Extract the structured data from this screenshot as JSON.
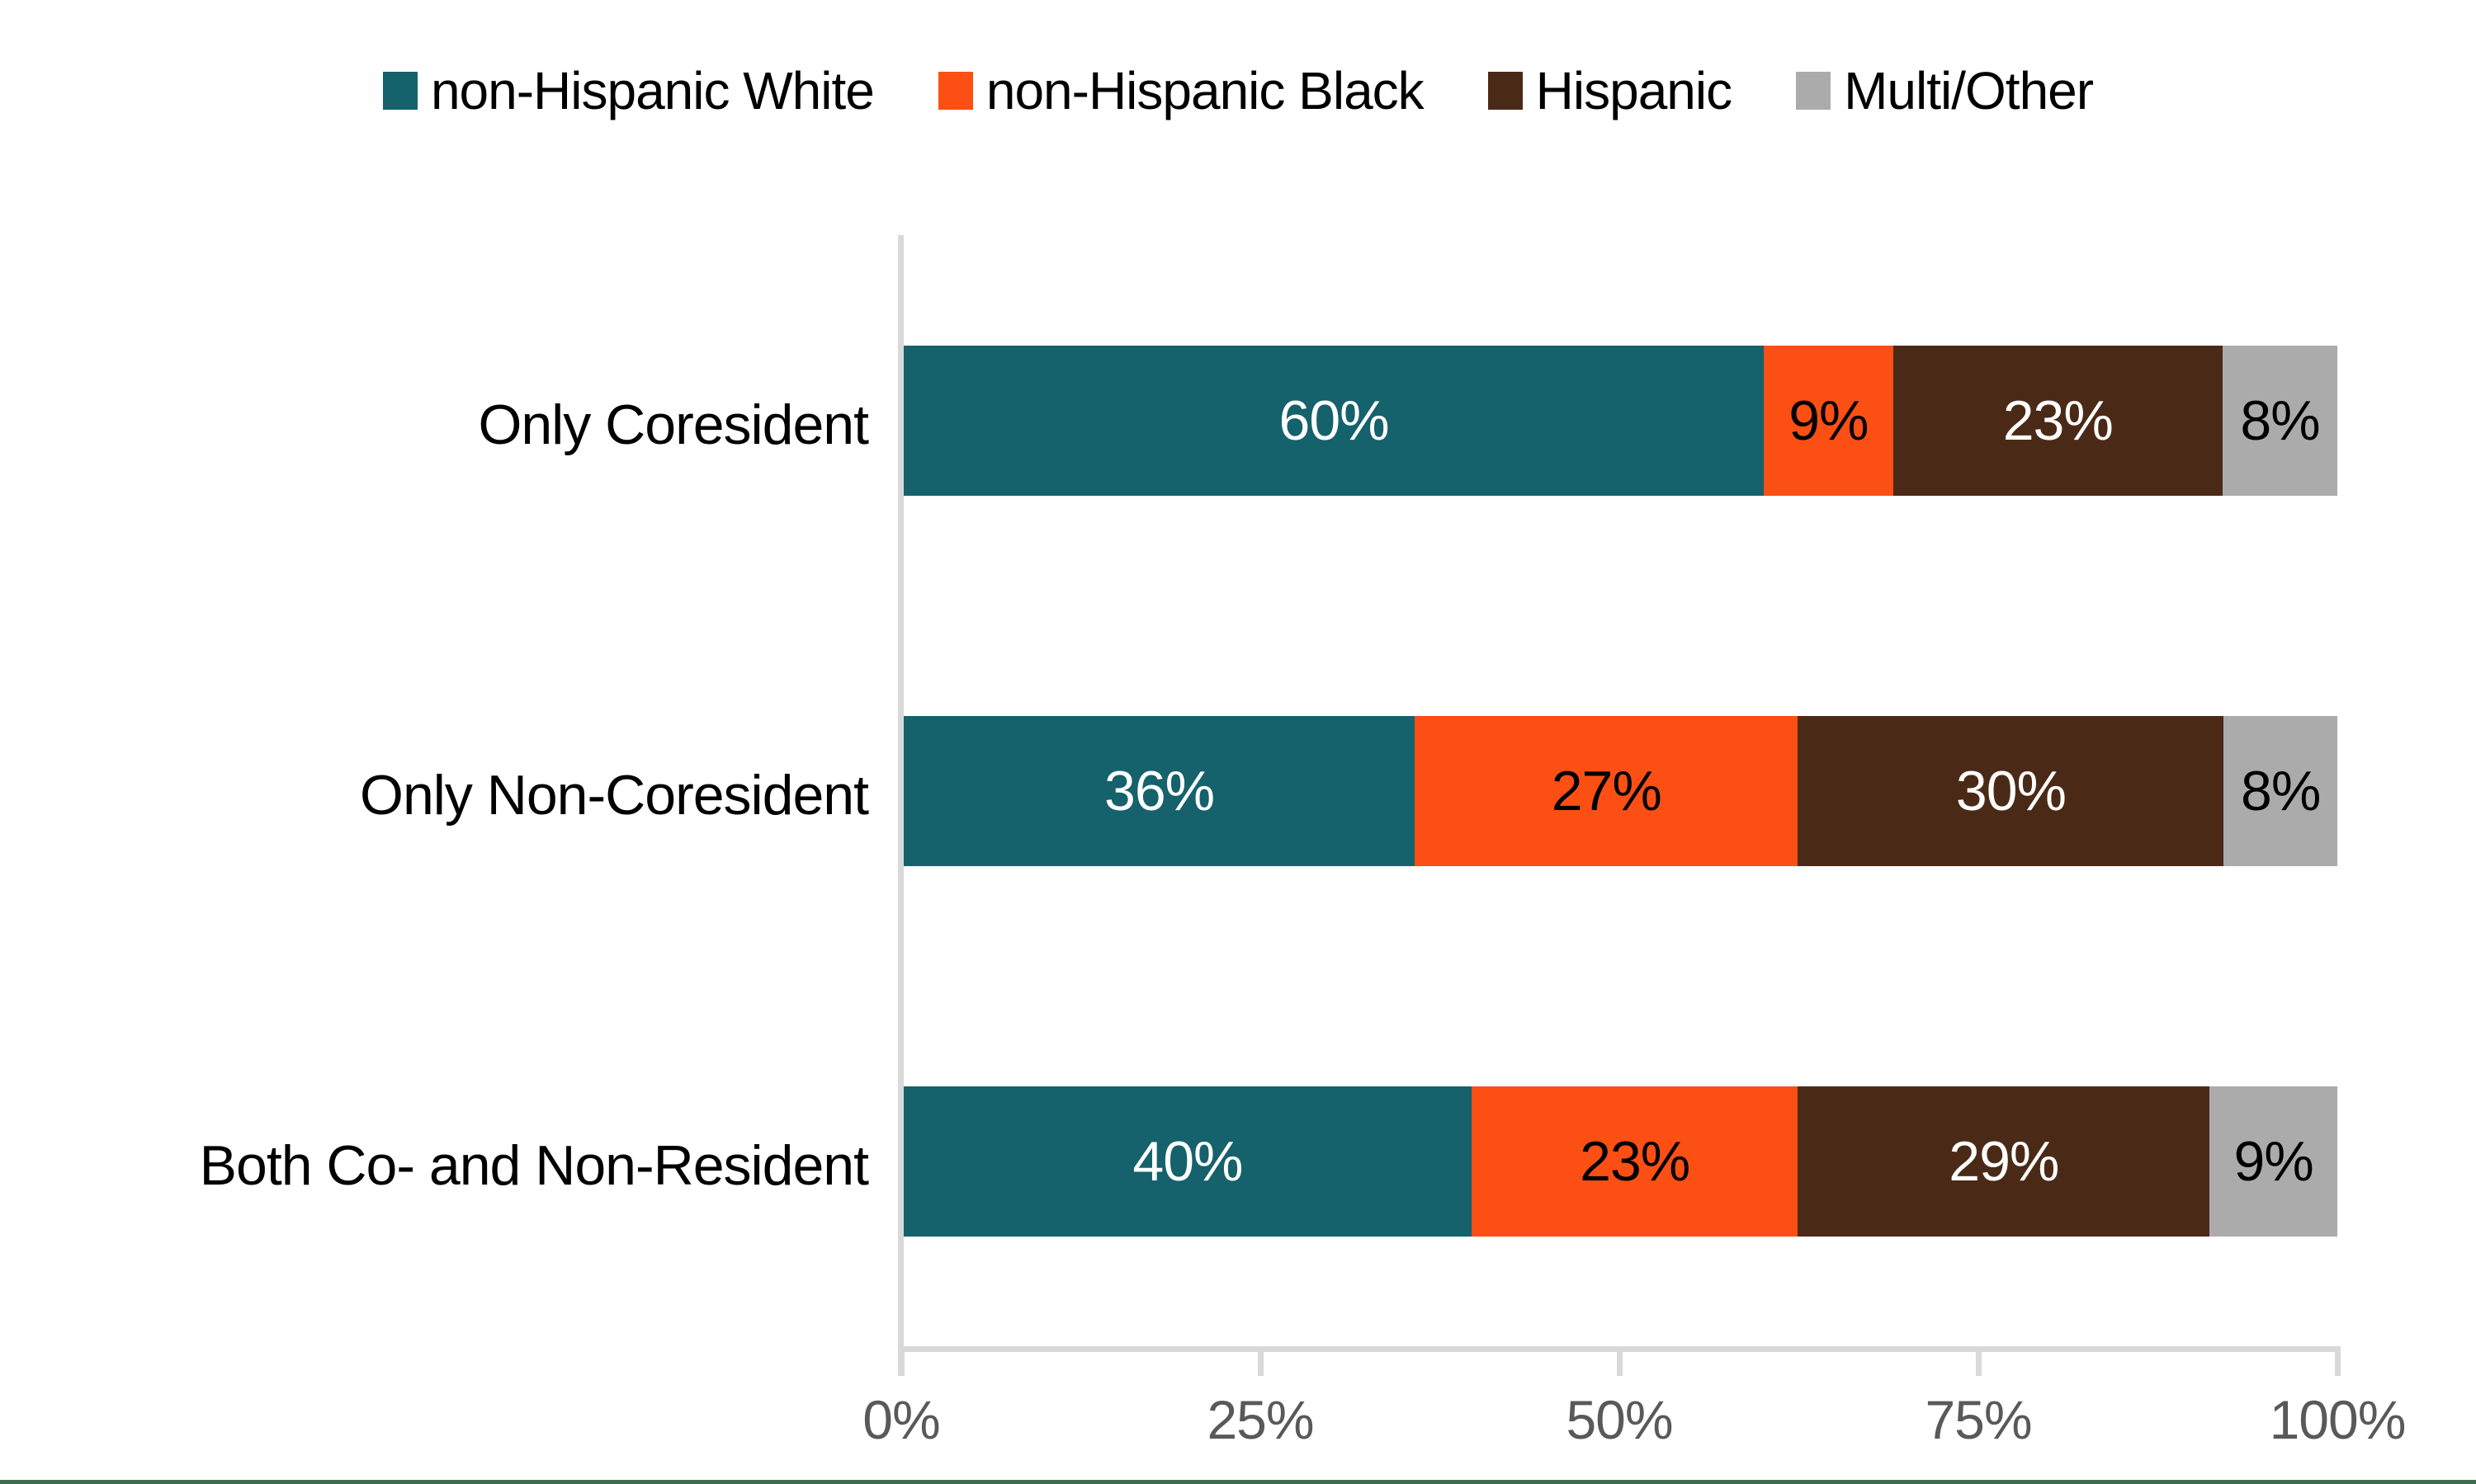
{
  "chart_data": {
    "type": "bar",
    "orientation": "horizontal",
    "stacked": true,
    "title": "",
    "xlabel": "",
    "ylabel": "",
    "categories": [
      "Only Coresident",
      "Only Non-Coresident",
      "Both Co- and Non-Resident"
    ],
    "series": [
      {
        "name": "non-Hispanic White",
        "color": "#15616C",
        "label_color": "#FFFFFF",
        "values": [
          60,
          36,
          40
        ]
      },
      {
        "name": "non-Hispanic Black",
        "color": "#FB4F14",
        "label_color": "#000000",
        "values": [
          9,
          27,
          23
        ]
      },
      {
        "name": "Hispanic",
        "color": "#4A2A17",
        "label_color": "#FFFFFF",
        "values": [
          23,
          30,
          29
        ]
      },
      {
        "name": "Multi/Other",
        "color": "#ABABAB",
        "label_color": "#000000",
        "values": [
          8,
          8,
          9
        ]
      }
    ],
    "value_suffix": "%",
    "x_axis": {
      "range": [
        0,
        100
      ],
      "tick_labels": [
        "0%",
        "25%",
        "50%",
        "75%",
        "100%"
      ]
    },
    "legend_position": "top",
    "grid": false
  },
  "colors": {
    "background": "#FFFFFF",
    "axis_line": "#D9D9D9",
    "axis_text": "#595959",
    "label_text": "#000000",
    "bottom_rule": "#3E6B4B"
  }
}
